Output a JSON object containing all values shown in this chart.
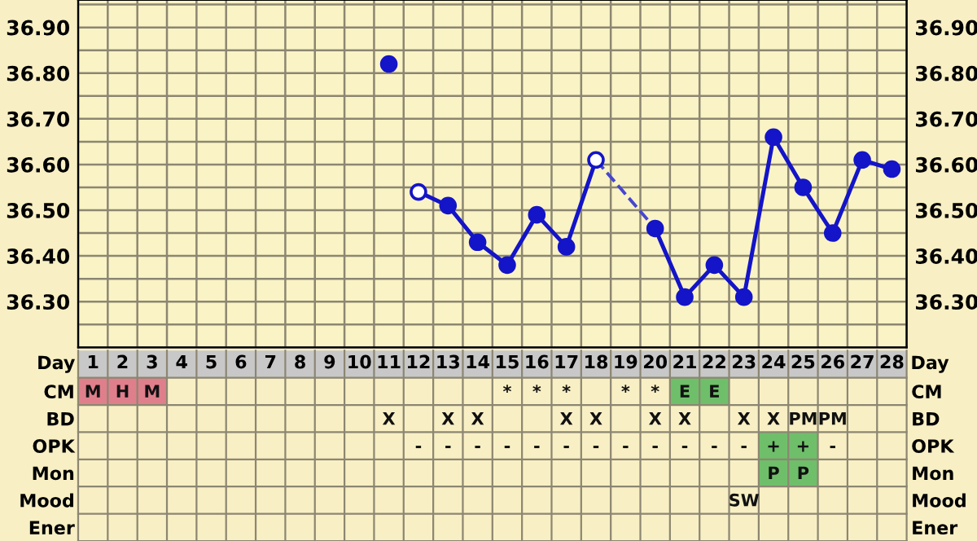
{
  "chart_data": [
    {
      "type": "line",
      "categories": [
        null,
        null,
        null,
        null,
        null,
        null,
        null,
        null,
        null,
        null,
        null,
        null,
        null,
        null,
        null,
        null,
        null,
        null,
        null,
        null,
        null,
        null,
        null,
        null,
        null,
        null,
        null,
        null
      ],
      "ylim": [
        36.2,
        36.96
      ],
      "yticks": [
        {
          "value": 36.25,
          "label": null
        },
        {
          "value": 36.3,
          "label": "36.30"
        },
        {
          "value": 36.35,
          "label": null
        },
        {
          "value": 36.4,
          "label": "36.40"
        },
        {
          "value": 36.45,
          "label": null
        },
        {
          "value": 36.5,
          "label": "36.50"
        },
        {
          "value": 36.55,
          "label": null
        },
        {
          "value": 36.6,
          "label": "36.60"
        },
        {
          "value": 36.65,
          "label": null
        },
        {
          "value": 36.7,
          "label": "36.70"
        },
        {
          "value": 36.75,
          "label": null
        },
        {
          "value": 36.8,
          "label": "36.80"
        },
        {
          "value": 36.85,
          "label": null
        },
        {
          "value": 36.9,
          "label": "36.90"
        },
        {
          "value": 36.95,
          "label": null
        }
      ],
      "y2lim": [
        36.2,
        36.96
      ],
      "y2ticks": [
        {
          "value": 36.25,
          "label": null
        },
        {
          "value": 36.3,
          "label": "36.30"
        },
        {
          "value": 36.35,
          "label": null
        },
        {
          "value": 36.4,
          "label": "36.40"
        },
        {
          "value": 36.45,
          "label": null
        },
        {
          "value": 36.5,
          "label": "36.50"
        },
        {
          "value": 36.55,
          "label": null
        },
        {
          "value": 36.6,
          "label": "36.60"
        },
        {
          "value": 36.65,
          "label": null
        },
        {
          "value": 36.7,
          "label": "36.70"
        },
        {
          "value": 36.75,
          "label": null
        },
        {
          "value": 36.8,
          "label": "36.80"
        },
        {
          "value": 36.85,
          "label": null
        },
        {
          "value": 36.9,
          "label": "36.90"
        },
        {
          "value": 36.95,
          "label": null
        }
      ],
      "grid": true,
      "tick_labels": "y",
      "marker": "circle",
      "series": [
        {
          "type": "scatter",
          "color": "#1414c8",
          "values": [
            null,
            null,
            null,
            null,
            null,
            null,
            null,
            null,
            null,
            null,
            36.82,
            null,
            null,
            null,
            null,
            null,
            null,
            null,
            null,
            null,
            null,
            null,
            null,
            null,
            null,
            null,
            null,
            null
          ]
        },
        {
          "color": "#1414c8",
          "values": [
            null,
            null,
            null,
            null,
            null,
            null,
            null,
            null,
            null,
            null,
            null,
            36.54,
            36.51,
            36.43,
            36.38,
            36.49,
            36.42,
            36.61,
            null,
            36.46,
            36.31,
            36.38,
            36.31,
            36.66,
            36.55,
            36.45,
            36.61,
            36.59
          ],
          "colors": [
            null,
            null,
            null,
            null,
            null,
            null,
            null,
            null,
            null,
            null,
            null,
            "#ffffff",
            "#1414c8",
            "#1414c8",
            "#1414c8",
            "#1414c8",
            "#1414c8",
            "#ffffff",
            null,
            "#1414c8",
            "#1414c8",
            "#1414c8",
            "#1414c8",
            "#1414c8",
            "#1414c8",
            "#1414c8",
            "#1414c8",
            "#1414c8"
          ]
        },
        {
          "color": "#4646d2",
          "line_style": "dashed",
          "marker": "none",
          "values": [
            null,
            null,
            null,
            null,
            null,
            null,
            null,
            null,
            null,
            null,
            null,
            null,
            null,
            null,
            null,
            null,
            null,
            36.61,
            null,
            36.46,
            null,
            null,
            null,
            null,
            null,
            null,
            null,
            null
          ]
        }
      ]
    },
    {
      "type": "heatmap",
      "xlabel": "Day",
      "categories": [
        "1",
        "2",
        "3",
        "4",
        "5",
        "6",
        "7",
        "8",
        "9",
        "10",
        "11",
        "12",
        "13",
        "14",
        "15",
        "16",
        "17",
        "18",
        "19",
        "20",
        "21",
        "22",
        "23",
        "24",
        "25",
        "26",
        "27",
        "28"
      ],
      "y_categories": [
        "CM",
        "BD",
        "OPK",
        "Mon",
        "Mood",
        "Ener"
      ],
      "y2_categories": [
        "CM",
        "BD",
        "OPK",
        "Mon",
        "Mood",
        "Ener"
      ],
      "cells": [
        [
          null,
          null,
          null,
          null,
          null,
          null,
          null,
          null,
          null,
          null,
          null,
          null,
          null,
          null,
          null,
          null,
          null,
          null,
          null,
          null,
          null,
          null,
          null,
          null,
          null,
          null,
          null,
          null
        ],
        [
          null,
          null,
          null,
          null,
          null,
          null,
          null,
          null,
          null,
          null,
          null,
          null,
          null,
          null,
          null,
          null,
          null,
          null,
          null,
          null,
          null,
          null,
          null,
          null,
          null,
          null,
          null,
          null
        ],
        [
          null,
          null,
          null,
          null,
          null,
          null,
          null,
          null,
          null,
          null,
          null,
          null,
          null,
          null,
          null,
          null,
          null,
          null,
          null,
          null,
          null,
          null,
          null,
          null,
          null,
          null,
          null,
          null
        ],
        [
          null,
          null,
          null,
          null,
          null,
          null,
          null,
          null,
          null,
          null,
          null,
          null,
          null,
          null,
          null,
          null,
          null,
          null,
          null,
          null,
          null,
          null,
          null,
          null,
          null,
          null,
          null,
          null
        ],
        [
          null,
          null,
          null,
          null,
          null,
          null,
          null,
          null,
          null,
          null,
          null,
          null,
          null,
          null,
          null,
          null,
          null,
          null,
          null,
          null,
          null,
          null,
          null,
          null,
          null,
          null,
          null,
          null
        ],
        [
          null,
          null,
          null,
          null,
          null,
          null,
          null,
          null,
          null,
          null,
          null,
          null,
          null,
          null,
          null,
          null,
          null,
          null,
          null,
          null,
          null,
          null,
          null,
          null,
          null,
          null,
          null,
          null
        ]
      ],
      "cell_labels": [
        [
          "M",
          "H",
          "M",
          null,
          null,
          null,
          null,
          null,
          null,
          null,
          null,
          null,
          null,
          null,
          "*",
          "*",
          "*",
          null,
          "*",
          "*",
          "E",
          "E",
          null,
          null,
          null,
          null,
          null,
          null
        ],
        [
          null,
          null,
          null,
          null,
          null,
          null,
          null,
          null,
          null,
          null,
          "X",
          null,
          "X",
          "X",
          null,
          null,
          "X",
          "X",
          null,
          "X",
          "X",
          null,
          "X",
          "X",
          "PM",
          "PM",
          null,
          null
        ],
        [
          null,
          null,
          null,
          null,
          null,
          null,
          null,
          null,
          null,
          null,
          null,
          "-",
          "-",
          "-",
          "-",
          "-",
          "-",
          "-",
          "-",
          "-",
          "-",
          "-",
          "-",
          "+",
          "+",
          "-",
          null,
          null
        ],
        [
          null,
          null,
          null,
          null,
          null,
          null,
          null,
          null,
          null,
          null,
          null,
          null,
          null,
          null,
          null,
          null,
          null,
          null,
          null,
          null,
          null,
          null,
          null,
          "P",
          "P",
          null,
          null,
          null
        ],
        [
          null,
          null,
          null,
          null,
          null,
          null,
          null,
          null,
          null,
          null,
          null,
          null,
          null,
          null,
          null,
          null,
          null,
          null,
          null,
          null,
          null,
          null,
          "SW",
          null,
          null,
          null,
          null,
          null
        ],
        [
          null,
          null,
          null,
          null,
          null,
          null,
          null,
          null,
          null,
          null,
          null,
          null,
          null,
          null,
          null,
          null,
          null,
          null,
          null,
          null,
          null,
          null,
          null,
          null,
          null,
          null,
          null,
          null
        ]
      ],
      "colors": [
        [
          "#e07f8c",
          "#e07f8c",
          "#e07f8c",
          "#fbf5df",
          "#fbf5df",
          "#fbf5df",
          "#fbf5df",
          "#fbf5df",
          "#fbf5df",
          "#fbf5df",
          "#fbf5df",
          "#fbf5df",
          "#fbf5df",
          "#fbf5df",
          "#fbf5df",
          "#fbf5df",
          "#fbf5df",
          "#fbf5df",
          "#fbf5df",
          "#fbf5df",
          "#6fbf6a",
          "#6fbf6a",
          "#fbf5df",
          "#fbf5df",
          "#fbf5df",
          "#fbf5df",
          "#fbf5df",
          "#fbf5df"
        ],
        [
          "#fbf5df",
          "#fbf5df",
          "#fbf5df",
          "#fbf5df",
          "#fbf5df",
          "#fbf5df",
          "#fbf5df",
          "#fbf5df",
          "#fbf5df",
          "#fbf5df",
          "#fbf5df",
          "#fbf5df",
          "#fbf5df",
          "#fbf5df",
          "#fbf5df",
          "#fbf5df",
          "#fbf5df",
          "#fbf5df",
          "#fbf5df",
          "#fbf5df",
          "#fbf5df",
          "#fbf5df",
          "#fbf5df",
          "#fbf5df",
          "#fbf5df",
          "#fbf5df",
          "#fbf5df",
          "#fbf5df"
        ],
        [
          "#fbf5df",
          "#fbf5df",
          "#fbf5df",
          "#fbf5df",
          "#fbf5df",
          "#fbf5df",
          "#fbf5df",
          "#fbf5df",
          "#fbf5df",
          "#fbf5df",
          "#fbf5df",
          "#fbf5df",
          "#fbf5df",
          "#fbf5df",
          "#fbf5df",
          "#fbf5df",
          "#fbf5df",
          "#fbf5df",
          "#fbf5df",
          "#fbf5df",
          "#fbf5df",
          "#fbf5df",
          "#fbf5df",
          "#6fbf6a",
          "#6fbf6a",
          "#fbf5df",
          "#fbf5df",
          "#fbf5df"
        ],
        [
          "#fbf5df",
          "#fbf5df",
          "#fbf5df",
          "#fbf5df",
          "#fbf5df",
          "#fbf5df",
          "#fbf5df",
          "#fbf5df",
          "#fbf5df",
          "#fbf5df",
          "#fbf5df",
          "#fbf5df",
          "#fbf5df",
          "#fbf5df",
          "#fbf5df",
          "#fbf5df",
          "#fbf5df",
          "#fbf5df",
          "#fbf5df",
          "#fbf5df",
          "#fbf5df",
          "#fbf5df",
          "#fbf5df",
          "#6fbf6a",
          "#6fbf6a",
          "#fbf5df",
          "#fbf5df",
          "#fbf5df"
        ],
        [
          "#fbf5df",
          "#fbf5df",
          "#fbf5df",
          "#fbf5df",
          "#fbf5df",
          "#fbf5df",
          "#fbf5df",
          "#fbf5df",
          "#fbf5df",
          "#fbf5df",
          "#fbf5df",
          "#fbf5df",
          "#fbf5df",
          "#fbf5df",
          "#fbf5df",
          "#fbf5df",
          "#fbf5df",
          "#fbf5df",
          "#fbf5df",
          "#fbf5df",
          "#fbf5df",
          "#fbf5df",
          "#fbf5df",
          "#fbf5df",
          "#fbf5df",
          "#fbf5df",
          "#fbf5df",
          "#fbf5df"
        ],
        [
          "#fbf5df",
          "#fbf5df",
          "#fbf5df",
          "#fbf5df",
          "#fbf5df",
          "#fbf5df",
          "#fbf5df",
          "#fbf5df",
          "#fbf5df",
          "#fbf5df",
          "#fbf5df",
          "#fbf5df",
          "#fbf5df",
          "#fbf5df",
          "#fbf5df",
          "#fbf5df",
          "#fbf5df",
          "#fbf5df",
          "#fbf5df",
          "#fbf5df",
          "#fbf5df",
          "#fbf5df",
          "#fbf5df",
          "#fbf5df",
          "#fbf5df",
          "#fbf5df",
          "#fbf5df",
          "#fbf5df"
        ]
      ]
    }
  ]
}
